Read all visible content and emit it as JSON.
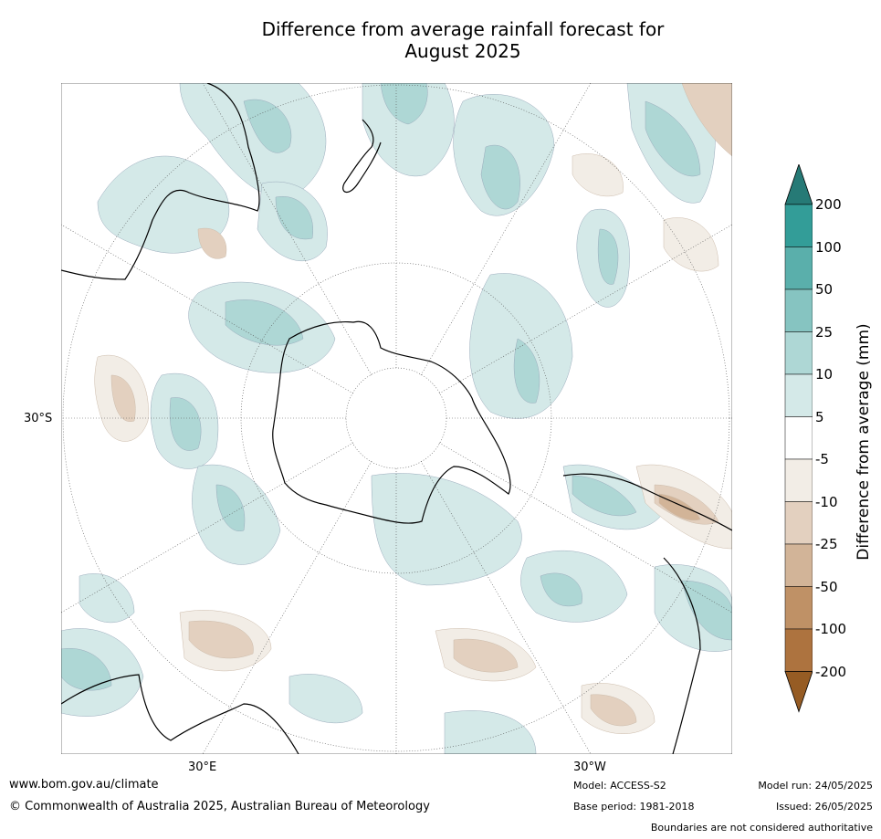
{
  "title_line1": "Difference from average rainfall forecast for",
  "title_line2": "August 2025",
  "map": {
    "projection": "south-polar-stereographic",
    "lat_label": "30°S",
    "lon_labels": [
      "30°E",
      "30°W"
    ]
  },
  "colorbar": {
    "label": "Difference from average (mm)",
    "ticks": [
      "200",
      "100",
      "50",
      "25",
      "10",
      "5",
      "-5",
      "-10",
      "-25",
      "-50",
      "-100",
      "-200"
    ],
    "colors": [
      "#267a76",
      "#339d98",
      "#5aafab",
      "#86c4c1",
      "#aed7d5",
      "#d4e9e8",
      "#ffffff",
      "#f2ede6",
      "#e3d0bf",
      "#d2b498",
      "#bf9166",
      "#ad733f",
      "#965c24"
    ]
  },
  "footer": {
    "url": "www.bom.gov.au/climate",
    "copyright": "© Commonwealth of Australia 2025, Australian Bureau of Meteorology",
    "model": "Model: ACCESS-S2",
    "base_period": "Base period: 1981-2018",
    "model_run": "Model run: 24/05/2025",
    "issued": "Issued: 26/05/2025",
    "disclaimer": "Boundaries are not considered authoritative"
  }
}
